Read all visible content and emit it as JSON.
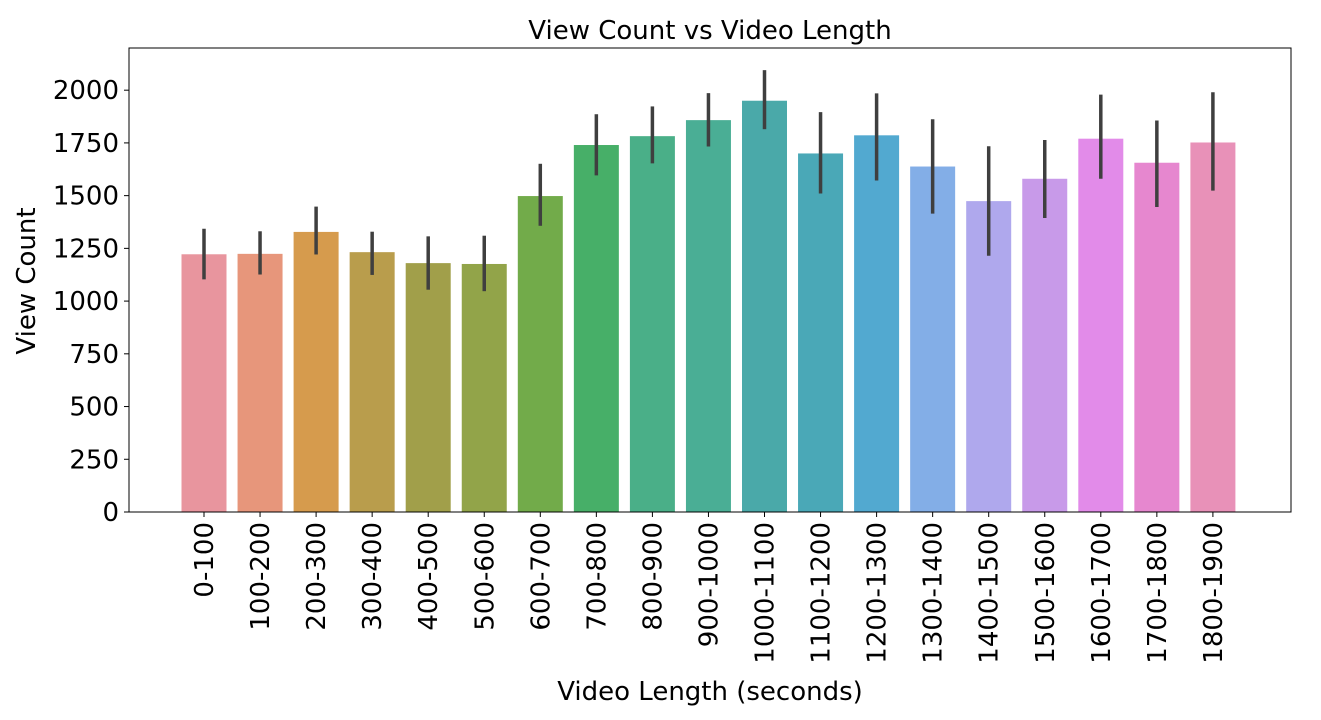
{
  "chart_data": {
    "type": "bar",
    "title": "View Count vs Video Length",
    "xlabel": "Video Length (seconds)",
    "ylabel": "View Count",
    "ylim": [
      0,
      2200
    ],
    "yticks": [
      0,
      250,
      500,
      750,
      1000,
      1250,
      1500,
      1750,
      2000
    ],
    "grid": false,
    "categories": [
      "0-100",
      "100-200",
      "200-300",
      "300-400",
      "400-500",
      "500-600",
      "600-700",
      "700-800",
      "800-900",
      "900-1000",
      "1000-1100",
      "1100-1200",
      "1200-1300",
      "1300-1400",
      "1400-1500",
      "1500-1600",
      "1600-1700",
      "1700-1800",
      "1800-1900"
    ],
    "values": [
      1222,
      1224,
      1328,
      1232,
      1180,
      1176,
      1498,
      1740,
      1782,
      1858,
      1950,
      1700,
      1786,
      1638,
      1474,
      1580,
      1770,
      1656,
      1752
    ],
    "error_low": [
      1103,
      1126,
      1221,
      1124,
      1054,
      1047,
      1357,
      1596,
      1653,
      1733,
      1815,
      1510,
      1572,
      1415,
      1215,
      1394,
      1580,
      1446,
      1524
    ],
    "error_high": [
      1343,
      1331,
      1448,
      1329,
      1307,
      1310,
      1651,
      1886,
      1923,
      1986,
      2095,
      1896,
      1985,
      1862,
      1734,
      1764,
      1979,
      1856,
      1990
    ],
    "colors": [
      "#e8959e",
      "#e7967b",
      "#d69b4d",
      "#b99d4c",
      "#a19f4a",
      "#92a449",
      "#72ab4a",
      "#47af68",
      "#4aaf88",
      "#4aae95",
      "#4aa9a9",
      "#4aa8b7",
      "#52a9d0",
      "#83aee7",
      "#afa8ed",
      "#c89ae9",
      "#e28be9",
      "#e687cf",
      "#e891b8"
    ],
    "error_color": "#3f3f3f"
  }
}
